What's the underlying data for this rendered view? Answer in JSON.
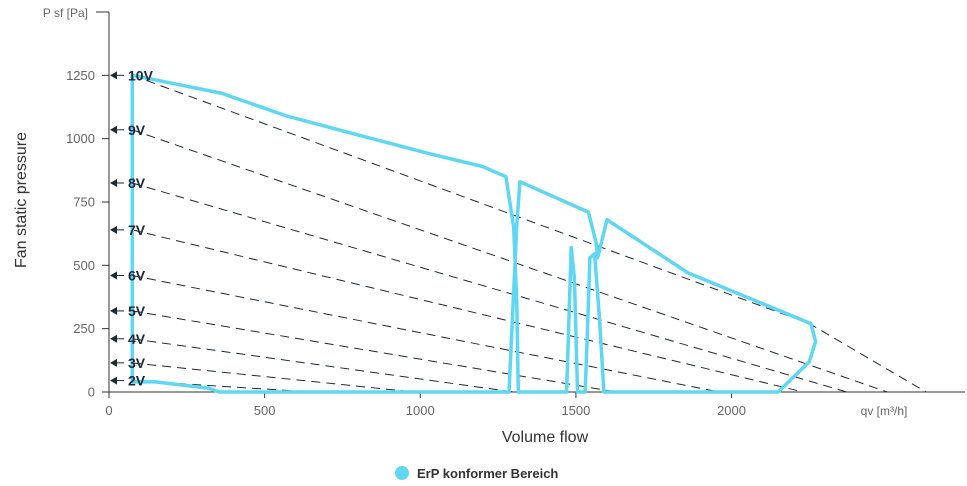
{
  "chart_data": {
    "type": "line",
    "title": "",
    "xlabel": "Volume flow",
    "ylabel": "Fan static pressure",
    "x_unit": "qv [m³/h]",
    "y_unit": "P sf [Pa]",
    "xlim": [
      0,
      2750
    ],
    "ylim": [
      0,
      1500
    ],
    "x_ticks": [
      "0",
      "500",
      "1000",
      "1500",
      "2000"
    ],
    "y_ticks": [
      "0",
      "250",
      "500",
      "750",
      "1000",
      "1250"
    ],
    "grid": false,
    "legend_position": "bottom-center",
    "colors": {
      "erp_area": "#5fd7f2",
      "curves": "#1d2a3a",
      "axis": "#333333"
    },
    "voltage_curves": [
      {
        "name": "10V",
        "points": [
          [
            75,
            1250
          ],
          [
            2250,
            270
          ],
          [
            2625,
            0
          ]
        ]
      },
      {
        "name": "9V",
        "points": [
          [
            75,
            1035
          ],
          [
            2500,
            0
          ]
        ]
      },
      {
        "name": "8V",
        "points": [
          [
            75,
            825
          ],
          [
            2370,
            0
          ]
        ]
      },
      {
        "name": "7V",
        "points": [
          [
            75,
            640
          ],
          [
            2230,
            0
          ]
        ]
      },
      {
        "name": "6V",
        "points": [
          [
            75,
            460
          ],
          [
            1960,
            0
          ]
        ]
      },
      {
        "name": "5V",
        "points": [
          [
            75,
            320
          ],
          [
            1630,
            0
          ]
        ]
      },
      {
        "name": "4V",
        "points": [
          [
            75,
            210
          ],
          [
            1300,
            0
          ]
        ]
      },
      {
        "name": "3V",
        "points": [
          [
            75,
            115
          ],
          [
            980,
            0
          ]
        ]
      },
      {
        "name": "2V",
        "points": [
          [
            75,
            45
          ],
          [
            650,
            0
          ]
        ]
      }
    ],
    "series": [
      {
        "name": "ErP konformer Bereich",
        "points": [
          [
            75,
            1250
          ],
          [
            360,
            1180
          ],
          [
            570,
            1090
          ],
          [
            800,
            1015
          ],
          [
            1015,
            945
          ],
          [
            1200,
            890
          ],
          [
            1275,
            850
          ],
          [
            1300,
            650
          ],
          [
            1310,
            350
          ],
          [
            1315,
            0
          ],
          [
            1470,
            0
          ],
          [
            1485,
            570
          ],
          [
            1495,
            450
          ],
          [
            1505,
            0
          ],
          [
            1530,
            0
          ],
          [
            1540,
            350
          ],
          [
            1545,
            530
          ],
          [
            1560,
            545
          ],
          [
            1575,
            300
          ],
          [
            1590,
            0
          ],
          [
            2150,
            0
          ],
          [
            2200,
            60
          ],
          [
            2250,
            120
          ],
          [
            2270,
            200
          ],
          [
            2255,
            270
          ],
          [
            1860,
            470
          ],
          [
            1600,
            680
          ],
          [
            1570,
            530
          ],
          [
            1565,
            590
          ],
          [
            1540,
            710
          ],
          [
            1320,
            830
          ],
          [
            1310,
            660
          ],
          [
            1285,
            0
          ],
          [
            355,
            0
          ],
          [
            320,
            15
          ],
          [
            150,
            40
          ],
          [
            75,
            40
          ],
          [
            75,
            1250
          ]
        ]
      }
    ]
  }
}
